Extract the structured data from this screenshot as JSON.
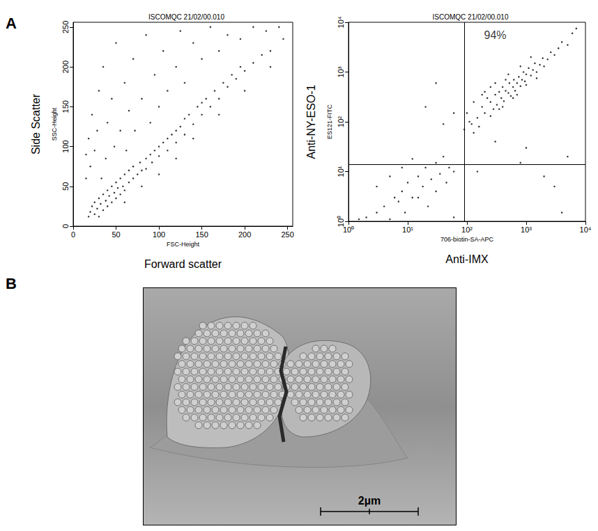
{
  "panel_labels": [
    "A",
    "B"
  ],
  "chart_data": [
    {
      "type": "scatter",
      "title": "ISCOMQC 21/02/00.010",
      "xlabel": "Forward scatter",
      "ylabel": "Side Scatter",
      "x_parameter": "FSC-Height",
      "y_parameter": "SSC-Height",
      "xlim": [
        0,
        256
      ],
      "ylim": [
        0,
        256
      ],
      "xticks": [
        0,
        50,
        100,
        150,
        200,
        250
      ],
      "yticks": [
        0,
        50,
        100,
        150,
        200,
        250
      ],
      "grid": false,
      "color": "#000000",
      "marker": "circle",
      "points": [
        [
          18,
          12
        ],
        [
          20,
          18
        ],
        [
          22,
          25
        ],
        [
          25,
          15
        ],
        [
          25,
          30
        ],
        [
          28,
          22
        ],
        [
          30,
          35
        ],
        [
          30,
          12
        ],
        [
          32,
          28
        ],
        [
          35,
          40
        ],
        [
          35,
          20
        ],
        [
          38,
          32
        ],
        [
          40,
          45
        ],
        [
          40,
          25
        ],
        [
          42,
          38
        ],
        [
          45,
          50
        ],
        [
          45,
          30
        ],
        [
          48,
          42
        ],
        [
          50,
          55
        ],
        [
          50,
          35
        ],
        [
          52,
          48
        ],
        [
          55,
          60
        ],
        [
          55,
          40
        ],
        [
          58,
          50
        ],
        [
          60,
          65
        ],
        [
          60,
          45
        ],
        [
          65,
          55
        ],
        [
          65,
          70
        ],
        [
          70,
          60
        ],
        [
          70,
          75
        ],
        [
          75,
          65
        ],
        [
          78,
          80
        ],
        [
          80,
          70
        ],
        [
          85,
          85
        ],
        [
          85,
          72
        ],
        [
          90,
          90
        ],
        [
          92,
          80
        ],
        [
          95,
          95
        ],
        [
          100,
          100
        ],
        [
          100,
          88
        ],
        [
          105,
          105
        ],
        [
          110,
          95
        ],
        [
          110,
          110
        ],
        [
          115,
          115
        ],
        [
          120,
          105
        ],
        [
          120,
          120
        ],
        [
          125,
          125
        ],
        [
          130,
          115
        ],
        [
          130,
          135
        ],
        [
          135,
          140
        ],
        [
          140,
          128
        ],
        [
          145,
          150
        ],
        [
          150,
          140
        ],
        [
          150,
          155
        ],
        [
          155,
          160
        ],
        [
          160,
          150
        ],
        [
          165,
          170
        ],
        [
          170,
          160
        ],
        [
          175,
          180
        ],
        [
          180,
          175
        ],
        [
          185,
          190
        ],
        [
          190,
          185
        ],
        [
          195,
          200
        ],
        [
          200,
          195
        ],
        [
          210,
          205
        ],
        [
          220,
          215
        ],
        [
          230,
          220
        ],
        [
          245,
          235
        ],
        [
          15,
          60
        ],
        [
          15,
          90
        ],
        [
          18,
          110
        ],
        [
          20,
          75
        ],
        [
          22,
          140
        ],
        [
          25,
          95
        ],
        [
          28,
          120
        ],
        [
          30,
          170
        ],
        [
          33,
          60
        ],
        [
          35,
          200
        ],
        [
          38,
          85
        ],
        [
          40,
          130
        ],
        [
          45,
          160
        ],
        [
          48,
          100
        ],
        [
          50,
          230
        ],
        [
          55,
          120
        ],
        [
          60,
          180
        ],
        [
          62,
          95
        ],
        [
          65,
          145
        ],
        [
          70,
          210
        ],
        [
          72,
          120
        ],
        [
          80,
          160
        ],
        [
          85,
          240
        ],
        [
          90,
          130
        ],
        [
          95,
          190
        ],
        [
          100,
          150
        ],
        [
          105,
          220
        ],
        [
          110,
          170
        ],
        [
          120,
          200
        ],
        [
          125,
          245
        ],
        [
          130,
          180
        ],
        [
          140,
          230
        ],
        [
          150,
          210
        ],
        [
          160,
          250
        ],
        [
          170,
          220
        ],
        [
          180,
          240
        ],
        [
          195,
          235
        ],
        [
          210,
          250
        ],
        [
          225,
          245
        ],
        [
          240,
          250
        ],
        [
          60,
          30
        ],
        [
          80,
          50
        ],
        [
          100,
          65
        ],
        [
          120,
          85
        ],
        [
          140,
          110
        ],
        [
          170,
          140
        ],
        [
          200,
          170
        ],
        [
          230,
          200
        ]
      ]
    },
    {
      "type": "scatter",
      "title": "ISCOMQC 21/02/00.010",
      "xlabel": "Anti-IMX",
      "ylabel": "Anti-NY-ESO-1",
      "x_parameter": "706-biotin-SA-APC",
      "y_parameter": "ES121-FITC",
      "log": true,
      "xlim": [
        1,
        10000
      ],
      "ylim": [
        1,
        10000
      ],
      "xticks": [
        {
          "value": 1,
          "label": "10⁰"
        },
        {
          "value": 10,
          "label": "10¹"
        },
        {
          "value": 100,
          "label": "10²"
        },
        {
          "value": 1000,
          "label": "10³"
        },
        {
          "value": 10000,
          "label": "10⁴"
        }
      ],
      "yticks": [
        {
          "value": 1,
          "label": "10⁰"
        },
        {
          "value": 10,
          "label": "10¹"
        },
        {
          "value": 100,
          "label": "10²"
        },
        {
          "value": 1000,
          "label": "10³"
        },
        {
          "value": 10000,
          "label": "10⁴"
        }
      ],
      "grid": false,
      "color": "#000000",
      "marker": "circle",
      "quadrant_x": 90,
      "quadrant_y": 14,
      "annotations": [
        {
          "text": "94%",
          "x": 300,
          "y": 5500
        }
      ],
      "points": [
        [
          150,
          120
        ],
        [
          180,
          200
        ],
        [
          200,
          150
        ],
        [
          220,
          300
        ],
        [
          250,
          250
        ],
        [
          280,
          180
        ],
        [
          300,
          350
        ],
        [
          320,
          220
        ],
        [
          350,
          400
        ],
        [
          380,
          300
        ],
        [
          400,
          500
        ],
        [
          420,
          260
        ],
        [
          450,
          420
        ],
        [
          500,
          380
        ],
        [
          520,
          600
        ],
        [
          550,
          330
        ],
        [
          600,
          500
        ],
        [
          620,
          700
        ],
        [
          650,
          420
        ],
        [
          700,
          600
        ],
        [
          750,
          800
        ],
        [
          800,
          520
        ],
        [
          850,
          700
        ],
        [
          900,
          1000
        ],
        [
          950,
          650
        ],
        [
          1000,
          900
        ],
        [
          1100,
          1200
        ],
        [
          1200,
          850
        ],
        [
          1300,
          1100
        ],
        [
          1400,
          1500
        ],
        [
          1500,
          1000
        ],
        [
          1700,
          1400
        ],
        [
          1900,
          1900
        ],
        [
          2000,
          1300
        ],
        [
          2300,
          1800
        ],
        [
          2600,
          2500
        ],
        [
          3000,
          2200
        ],
        [
          3500,
          3000
        ],
        [
          4000,
          4000
        ],
        [
          5000,
          3500
        ],
        [
          6000,
          6000
        ],
        [
          7000,
          7500
        ],
        [
          120,
          90
        ],
        [
          130,
          60
        ],
        [
          160,
          80
        ],
        [
          250,
          130
        ],
        [
          350,
          180
        ],
        [
          100,
          150
        ],
        [
          130,
          250
        ],
        [
          200,
          400
        ],
        [
          300,
          600
        ],
        [
          500,
          900
        ],
        [
          800,
          1300
        ],
        [
          1200,
          2000
        ],
        [
          700,
          350
        ],
        [
          1000,
          550
        ],
        [
          1500,
          750
        ],
        [
          400,
          200
        ],
        [
          600,
          300
        ],
        [
          250,
          500
        ],
        [
          450,
          700
        ],
        [
          180,
          350
        ],
        [
          90,
          70
        ],
        [
          110,
          100
        ],
        [
          2,
          1.2
        ],
        [
          3,
          1.5
        ],
        [
          4,
          2
        ],
        [
          5,
          1.1
        ],
        [
          6,
          3
        ],
        [
          7,
          2.5
        ],
        [
          8,
          4
        ],
        [
          9,
          1.5
        ],
        [
          10,
          6
        ],
        [
          12,
          3
        ],
        [
          15,
          8
        ],
        [
          18,
          5
        ],
        [
          20,
          12
        ],
        [
          25,
          7
        ],
        [
          30,
          15
        ],
        [
          35,
          9
        ],
        [
          40,
          20
        ],
        [
          50,
          12
        ],
        [
          3,
          5
        ],
        [
          5,
          8
        ],
        [
          8,
          12
        ],
        [
          12,
          18
        ],
        [
          15,
          3
        ],
        [
          22,
          2
        ],
        [
          30,
          4
        ],
        [
          45,
          6
        ],
        [
          60,
          10
        ],
        [
          1.5,
          1.1
        ],
        [
          20,
          200
        ],
        [
          30,
          600
        ],
        [
          40,
          90
        ],
        [
          60,
          150
        ],
        [
          1000,
          30
        ],
        [
          2000,
          8
        ],
        [
          3000,
          5
        ],
        [
          800,
          15
        ],
        [
          150,
          10
        ],
        [
          5000,
          20
        ],
        [
          300,
          40
        ],
        [
          4000,
          1.5
        ],
        [
          60,
          1.2
        ]
      ]
    }
  ],
  "image": {
    "panel": "B",
    "scale_bar": "2µm"
  }
}
